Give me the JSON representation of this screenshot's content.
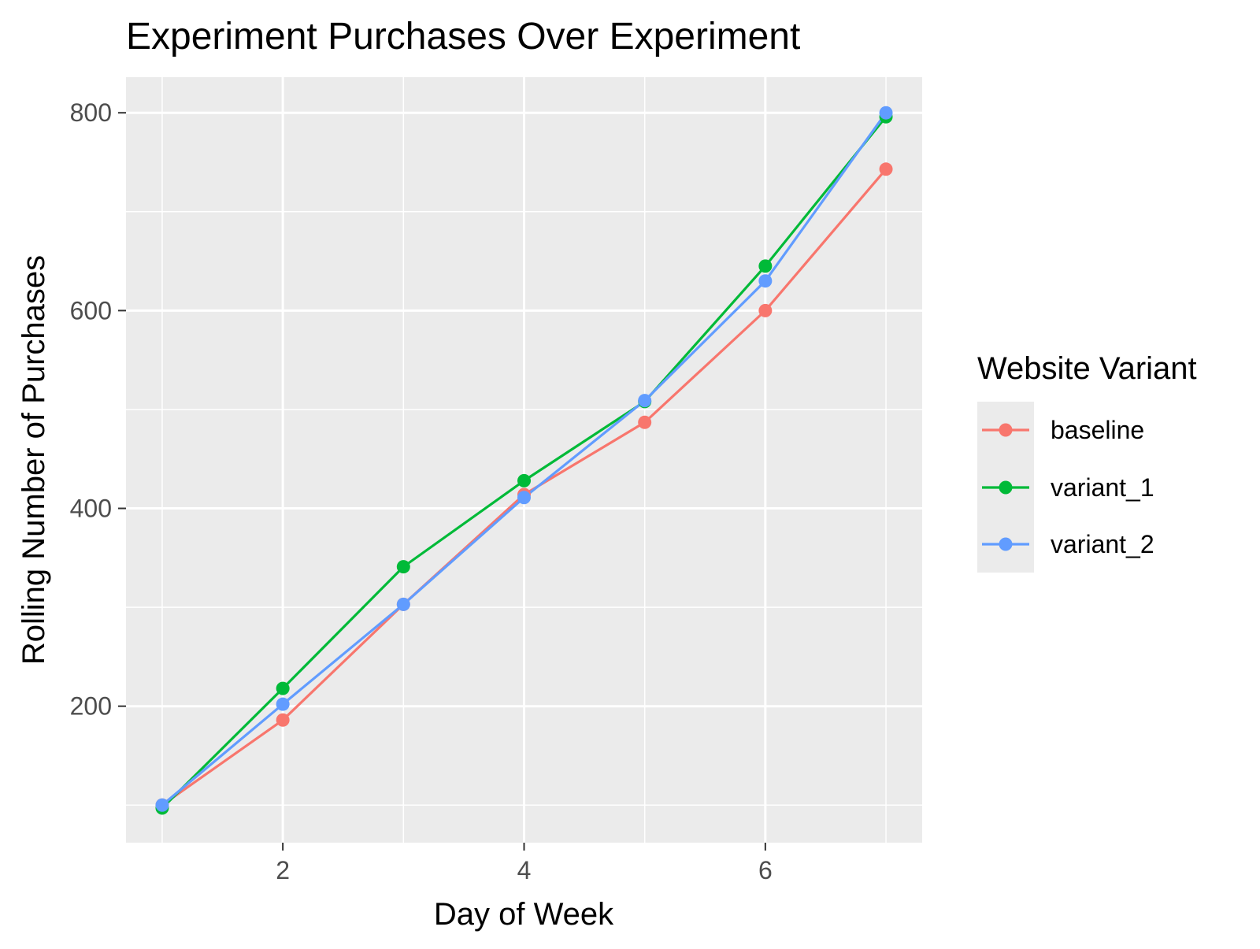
{
  "chart_data": {
    "type": "line",
    "title": "Experiment Purchases Over Experiment",
    "xlabel": "Day of Week",
    "ylabel": "Rolling Number of Purchases",
    "x": [
      1,
      2,
      3,
      4,
      5,
      6,
      7
    ],
    "xlim": [
      0.7,
      7.3
    ],
    "ylim": [
      62,
      836
    ],
    "x_ticks": [
      2,
      4,
      6
    ],
    "y_ticks": [
      200,
      400,
      600,
      800
    ],
    "x_minor_ticks": [
      1,
      3,
      5,
      7
    ],
    "y_minor_ticks": [
      100,
      300,
      500,
      700
    ],
    "grid": true,
    "legend": {
      "title": "Website Variant",
      "position": "right"
    },
    "series": [
      {
        "name": "baseline",
        "color": "#F8766D",
        "values": [
          100,
          186,
          303,
          414,
          487,
          600,
          743
        ]
      },
      {
        "name": "variant_1",
        "color": "#00BA38",
        "values": [
          97,
          218,
          341,
          428,
          508,
          645,
          796
        ]
      },
      {
        "name": "variant_2",
        "color": "#619CFF",
        "values": [
          100,
          202,
          303,
          411,
          509,
          630,
          800
        ]
      }
    ]
  }
}
